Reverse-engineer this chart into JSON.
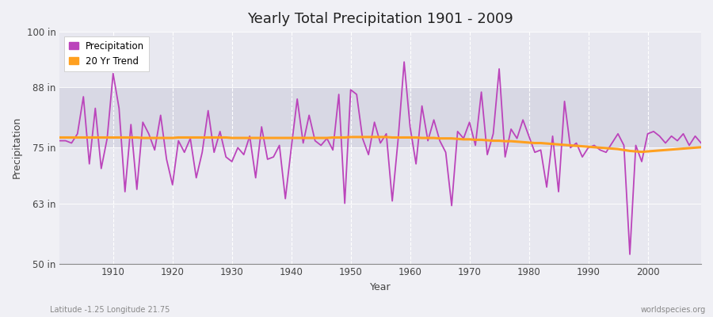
{
  "title": "Yearly Total Precipitation 1901 - 2009",
  "xlabel": "Year",
  "ylabel": "Precipitation",
  "left_label": "Latitude -1.25 Longitude 21.75",
  "right_label": "worldspecies.org",
  "ylim": [
    50,
    100
  ],
  "yticks": [
    50,
    63,
    75,
    88,
    100
  ],
  "ytick_labels": [
    "50 in",
    "63 in",
    "75 in",
    "88 in",
    "100 in"
  ],
  "xlim": [
    1901,
    2009
  ],
  "xticks": [
    1910,
    1920,
    1930,
    1940,
    1950,
    1960,
    1970,
    1980,
    1990,
    2000
  ],
  "precip_color": "#bb44bb",
  "trend_color": "#ffa020",
  "fig_bg_color": "#f0f0f5",
  "plot_bg_color": "#e8e8f0",
  "band_color": "#d8d8e4",
  "grid_color": "#ffffff",
  "years": [
    1901,
    1902,
    1903,
    1904,
    1905,
    1906,
    1907,
    1908,
    1909,
    1910,
    1911,
    1912,
    1913,
    1914,
    1915,
    1916,
    1917,
    1918,
    1919,
    1920,
    1921,
    1922,
    1923,
    1924,
    1925,
    1926,
    1927,
    1928,
    1929,
    1930,
    1931,
    1932,
    1933,
    1934,
    1935,
    1936,
    1937,
    1938,
    1939,
    1940,
    1941,
    1942,
    1943,
    1944,
    1945,
    1946,
    1947,
    1948,
    1949,
    1950,
    1951,
    1952,
    1953,
    1954,
    1955,
    1956,
    1957,
    1958,
    1959,
    1960,
    1961,
    1962,
    1963,
    1964,
    1965,
    1966,
    1967,
    1968,
    1969,
    1970,
    1971,
    1972,
    1973,
    1974,
    1975,
    1976,
    1977,
    1978,
    1979,
    1980,
    1981,
    1982,
    1983,
    1984,
    1985,
    1986,
    1987,
    1988,
    1989,
    1990,
    1991,
    1992,
    1993,
    1994,
    1995,
    1996,
    1997,
    1998,
    1999,
    2000,
    2001,
    2002,
    2003,
    2004,
    2005,
    2006,
    2007,
    2008,
    2009
  ],
  "precipitation": [
    76.5,
    76.5,
    76.0,
    78.0,
    86.0,
    71.5,
    83.5,
    70.5,
    77.0,
    91.0,
    83.5,
    65.5,
    80.0,
    66.0,
    80.5,
    78.0,
    74.5,
    82.0,
    72.5,
    67.0,
    76.5,
    74.0,
    77.0,
    68.5,
    74.0,
    83.0,
    74.0,
    78.5,
    73.0,
    72.0,
    75.0,
    73.5,
    77.5,
    68.5,
    79.5,
    72.5,
    73.0,
    75.5,
    64.0,
    75.0,
    85.5,
    76.0,
    82.0,
    76.5,
    75.5,
    77.0,
    74.5,
    86.5,
    63.0,
    87.5,
    86.5,
    77.0,
    73.5,
    80.5,
    76.0,
    78.0,
    63.5,
    77.0,
    93.5,
    79.5,
    71.5,
    84.0,
    76.5,
    81.0,
    76.5,
    74.0,
    62.5,
    78.5,
    77.0,
    80.5,
    75.5,
    87.0,
    73.5,
    78.0,
    92.0,
    73.0,
    79.0,
    77.0,
    81.0,
    77.5,
    74.0,
    74.5,
    66.5,
    77.5,
    65.5,
    85.0,
    75.0,
    76.0,
    73.0,
    75.0,
    75.5,
    74.5,
    74.0,
    76.0,
    78.0,
    75.5,
    52.0,
    75.5,
    72.0,
    78.0,
    78.5,
    77.5,
    76.0,
    77.5,
    76.5,
    78.0,
    75.5,
    77.5,
    76.0
  ],
  "trend": [
    77.2,
    77.2,
    77.2,
    77.2,
    77.2,
    77.2,
    77.2,
    77.2,
    77.2,
    77.2,
    77.2,
    77.2,
    77.2,
    77.2,
    77.1,
    77.1,
    77.1,
    77.1,
    77.1,
    77.1,
    77.2,
    77.2,
    77.2,
    77.2,
    77.2,
    77.2,
    77.2,
    77.2,
    77.2,
    77.1,
    77.1,
    77.1,
    77.1,
    77.1,
    77.1,
    77.1,
    77.1,
    77.1,
    77.1,
    77.1,
    77.1,
    77.1,
    77.1,
    77.1,
    77.1,
    77.1,
    77.2,
    77.2,
    77.2,
    77.3,
    77.3,
    77.3,
    77.3,
    77.3,
    77.3,
    77.3,
    77.2,
    77.2,
    77.2,
    77.2,
    77.2,
    77.1,
    77.1,
    77.1,
    77.0,
    77.0,
    77.0,
    76.9,
    76.8,
    76.8,
    76.7,
    76.7,
    76.6,
    76.5,
    76.5,
    76.4,
    76.4,
    76.3,
    76.2,
    76.1,
    76.0,
    76.0,
    75.9,
    75.8,
    75.7,
    75.6,
    75.5,
    75.4,
    75.3,
    75.2,
    75.1,
    75.0,
    74.9,
    74.8,
    74.7,
    74.5,
    74.3,
    74.2,
    74.1,
    74.2,
    74.3,
    74.4,
    74.5,
    74.6,
    74.7,
    74.8,
    74.9,
    75.0,
    75.1
  ]
}
